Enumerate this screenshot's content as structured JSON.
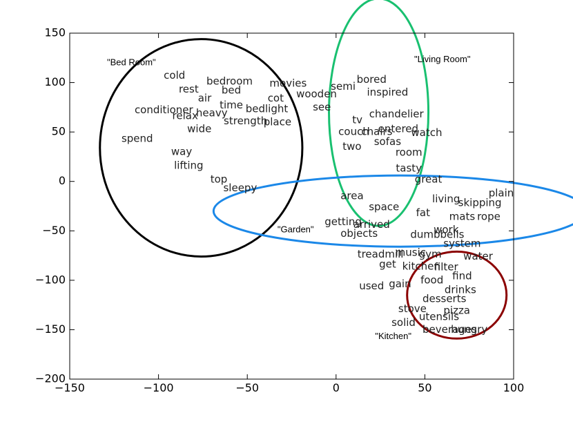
{
  "chart_data": {
    "type": "scatter",
    "title": "",
    "xlabel": "",
    "ylabel": "",
    "xlim": [
      -150,
      100
    ],
    "ylim": [
      -200,
      150
    ],
    "xticks": [
      -150,
      -100,
      -50,
      0,
      50,
      100
    ],
    "yticks": [
      -200,
      -150,
      -100,
      -50,
      0,
      50,
      100,
      150
    ],
    "xtick_labels": [
      "−150",
      "−100",
      "−50",
      "0",
      "50",
      "100"
    ],
    "ytick_labels": [
      "−200",
      "−150",
      "−100",
      "−50",
      "0",
      "50",
      "100",
      "150"
    ],
    "grid": false,
    "points": [
      {
        "label": "cold",
        "x": -91,
        "y": 107
      },
      {
        "label": "bedroom",
        "x": -60,
        "y": 101
      },
      {
        "label": "movies",
        "x": -27,
        "y": 99
      },
      {
        "label": "rest",
        "x": -83,
        "y": 93
      },
      {
        "label": "bed",
        "x": -59,
        "y": 92
      },
      {
        "label": "air",
        "x": -74,
        "y": 84
      },
      {
        "label": "cot",
        "x": -34,
        "y": 84
      },
      {
        "label": "wooden",
        "x": -11,
        "y": 88
      },
      {
        "label": "time",
        "x": -59,
        "y": 77
      },
      {
        "label": "bedlight",
        "x": -39,
        "y": 73
      },
      {
        "label": "see",
        "x": -8,
        "y": 75
      },
      {
        "label": "conditioner",
        "x": -97,
        "y": 72
      },
      {
        "label": "heavy",
        "x": -70,
        "y": 69
      },
      {
        "label": "relax",
        "x": -85,
        "y": 66
      },
      {
        "label": "strength",
        "x": -51,
        "y": 61
      },
      {
        "label": "place",
        "x": -33,
        "y": 60
      },
      {
        "label": "wide",
        "x": -77,
        "y": 53
      },
      {
        "label": "spend",
        "x": -112,
        "y": 43
      },
      {
        "label": "way",
        "x": -87,
        "y": 30
      },
      {
        "label": "lifting",
        "x": -83,
        "y": 16
      },
      {
        "label": "top",
        "x": -66,
        "y": 2
      },
      {
        "label": "sleepy",
        "x": -54,
        "y": -7
      },
      {
        "label": "bored",
        "x": 20,
        "y": 103
      },
      {
        "label": "semi",
        "x": 4,
        "y": 96
      },
      {
        "label": "inspired",
        "x": 29,
        "y": 90
      },
      {
        "label": "chandelier",
        "x": 34,
        "y": 68
      },
      {
        "label": "tv",
        "x": 12,
        "y": 62
      },
      {
        "label": "couch",
        "x": 10,
        "y": 50
      },
      {
        "label": "chairs",
        "x": 23,
        "y": 50
      },
      {
        "label": "entered",
        "x": 35,
        "y": 53
      },
      {
        "label": "watch",
        "x": 51,
        "y": 49
      },
      {
        "label": "sofas",
        "x": 29,
        "y": 40
      },
      {
        "label": "two",
        "x": 9,
        "y": 35
      },
      {
        "label": "room",
        "x": 41,
        "y": 29
      },
      {
        "label": "tasty",
        "x": 41,
        "y": 13
      },
      {
        "label": "great",
        "x": 52,
        "y": 2
      },
      {
        "label": "plain",
        "x": 93,
        "y": -12
      },
      {
        "label": "area",
        "x": 9,
        "y": -15
      },
      {
        "label": "living",
        "x": 62,
        "y": -18
      },
      {
        "label": "skipping",
        "x": 81,
        "y": -22
      },
      {
        "label": "space",
        "x": 27,
        "y": -26
      },
      {
        "label": "fat",
        "x": 49,
        "y": -32
      },
      {
        "label": "mats",
        "x": 71,
        "y": -36
      },
      {
        "label": "rope",
        "x": 86,
        "y": -36
      },
      {
        "label": "getting",
        "x": 4,
        "y": -41
      },
      {
        "label": "arrived",
        "x": 20,
        "y": -44
      },
      {
        "label": "work",
        "x": 62,
        "y": -49
      },
      {
        "label": "objects",
        "x": 13,
        "y": -53
      },
      {
        "label": "dumbbells",
        "x": 57,
        "y": -54
      },
      {
        "label": "system",
        "x": 71,
        "y": -63
      },
      {
        "label": "treadmill",
        "x": 25,
        "y": -74
      },
      {
        "label": "music",
        "x": 42,
        "y": -72
      },
      {
        "label": "gym",
        "x": 53,
        "y": -74
      },
      {
        "label": "water",
        "x": 80,
        "y": -76
      },
      {
        "label": "get",
        "x": 29,
        "y": -84
      },
      {
        "label": "kitchen",
        "x": 48,
        "y": -86
      },
      {
        "label": "filter",
        "x": 62,
        "y": -87
      },
      {
        "label": "find",
        "x": 71,
        "y": -96
      },
      {
        "label": "food",
        "x": 54,
        "y": -100
      },
      {
        "label": "used",
        "x": 20,
        "y": -106
      },
      {
        "label": "gain",
        "x": 36,
        "y": -104
      },
      {
        "label": "drinks",
        "x": 70,
        "y": -110
      },
      {
        "label": "desserts",
        "x": 61,
        "y": -119
      },
      {
        "label": "stove",
        "x": 43,
        "y": -129
      },
      {
        "label": "pizza",
        "x": 68,
        "y": -131
      },
      {
        "label": "utensils",
        "x": 58,
        "y": -137
      },
      {
        "label": "solid",
        "x": 38,
        "y": -143
      },
      {
        "label": "beverages",
        "x": 64,
        "y": -150
      },
      {
        "label": "hungry",
        "x": 75,
        "y": -150
      }
    ],
    "clusters": [
      {
        "label": "\"Bed Room\"",
        "color": "#000000",
        "cx": -76,
        "cy": 34,
        "rx": 57,
        "ry": 110,
        "label_x": -129,
        "label_y": 120
      },
      {
        "label": "\"Living Room\"",
        "color": "#19c070",
        "cx": 24,
        "cy": 70,
        "rx": 28,
        "ry": 115,
        "label_x": 44,
        "label_y": 123
      },
      {
        "label": "\"Garden\"",
        "color": "#1b88e8",
        "cx": 36,
        "cy": -30,
        "rx": 105,
        "ry": 36,
        "label_x": -33,
        "label_y": -49
      },
      {
        "label": "\"Kitchen\"",
        "color": "#8b0000",
        "cx": 68,
        "cy": -115,
        "rx": 28,
        "ry": 44,
        "label_x": 22,
        "label_y": -157
      }
    ]
  }
}
